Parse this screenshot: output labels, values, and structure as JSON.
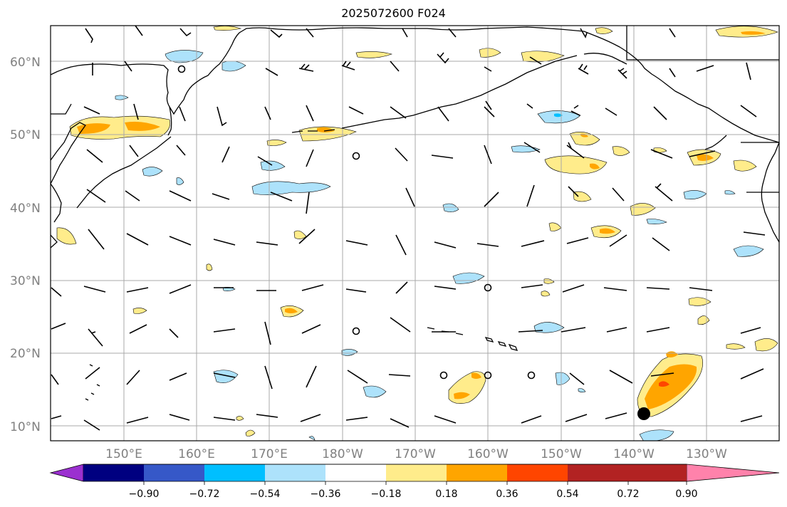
{
  "title": "2025072600 F024",
  "lat_labels": [
    "60°N",
    "50°N",
    "40°N",
    "30°N",
    "20°N",
    "10°N"
  ],
  "lon_labels": [
    "150°E",
    "160°E",
    "170°E",
    "180°W",
    "170°W",
    "160°W",
    "150°W",
    "140°W",
    "130°W"
  ],
  "colorbar": {
    "colors": [
      "#9b30d0",
      "#000080",
      "#3658c8",
      "#00bfff",
      "#ade2fb",
      "#ffffff",
      "#ffec8b",
      "#ffa500",
      "#ff4500",
      "#b22222",
      "#ff82ab"
    ],
    "tick_labels": [
      "−0.90",
      "−0.72",
      "−0.54",
      "−0.36",
      "−0.18",
      "0.18",
      "0.36",
      "0.54",
      "0.72",
      "0.90"
    ]
  },
  "storm_marker": {
    "lat": 11.5,
    "lon": -138.5,
    "color": "#000000"
  }
}
